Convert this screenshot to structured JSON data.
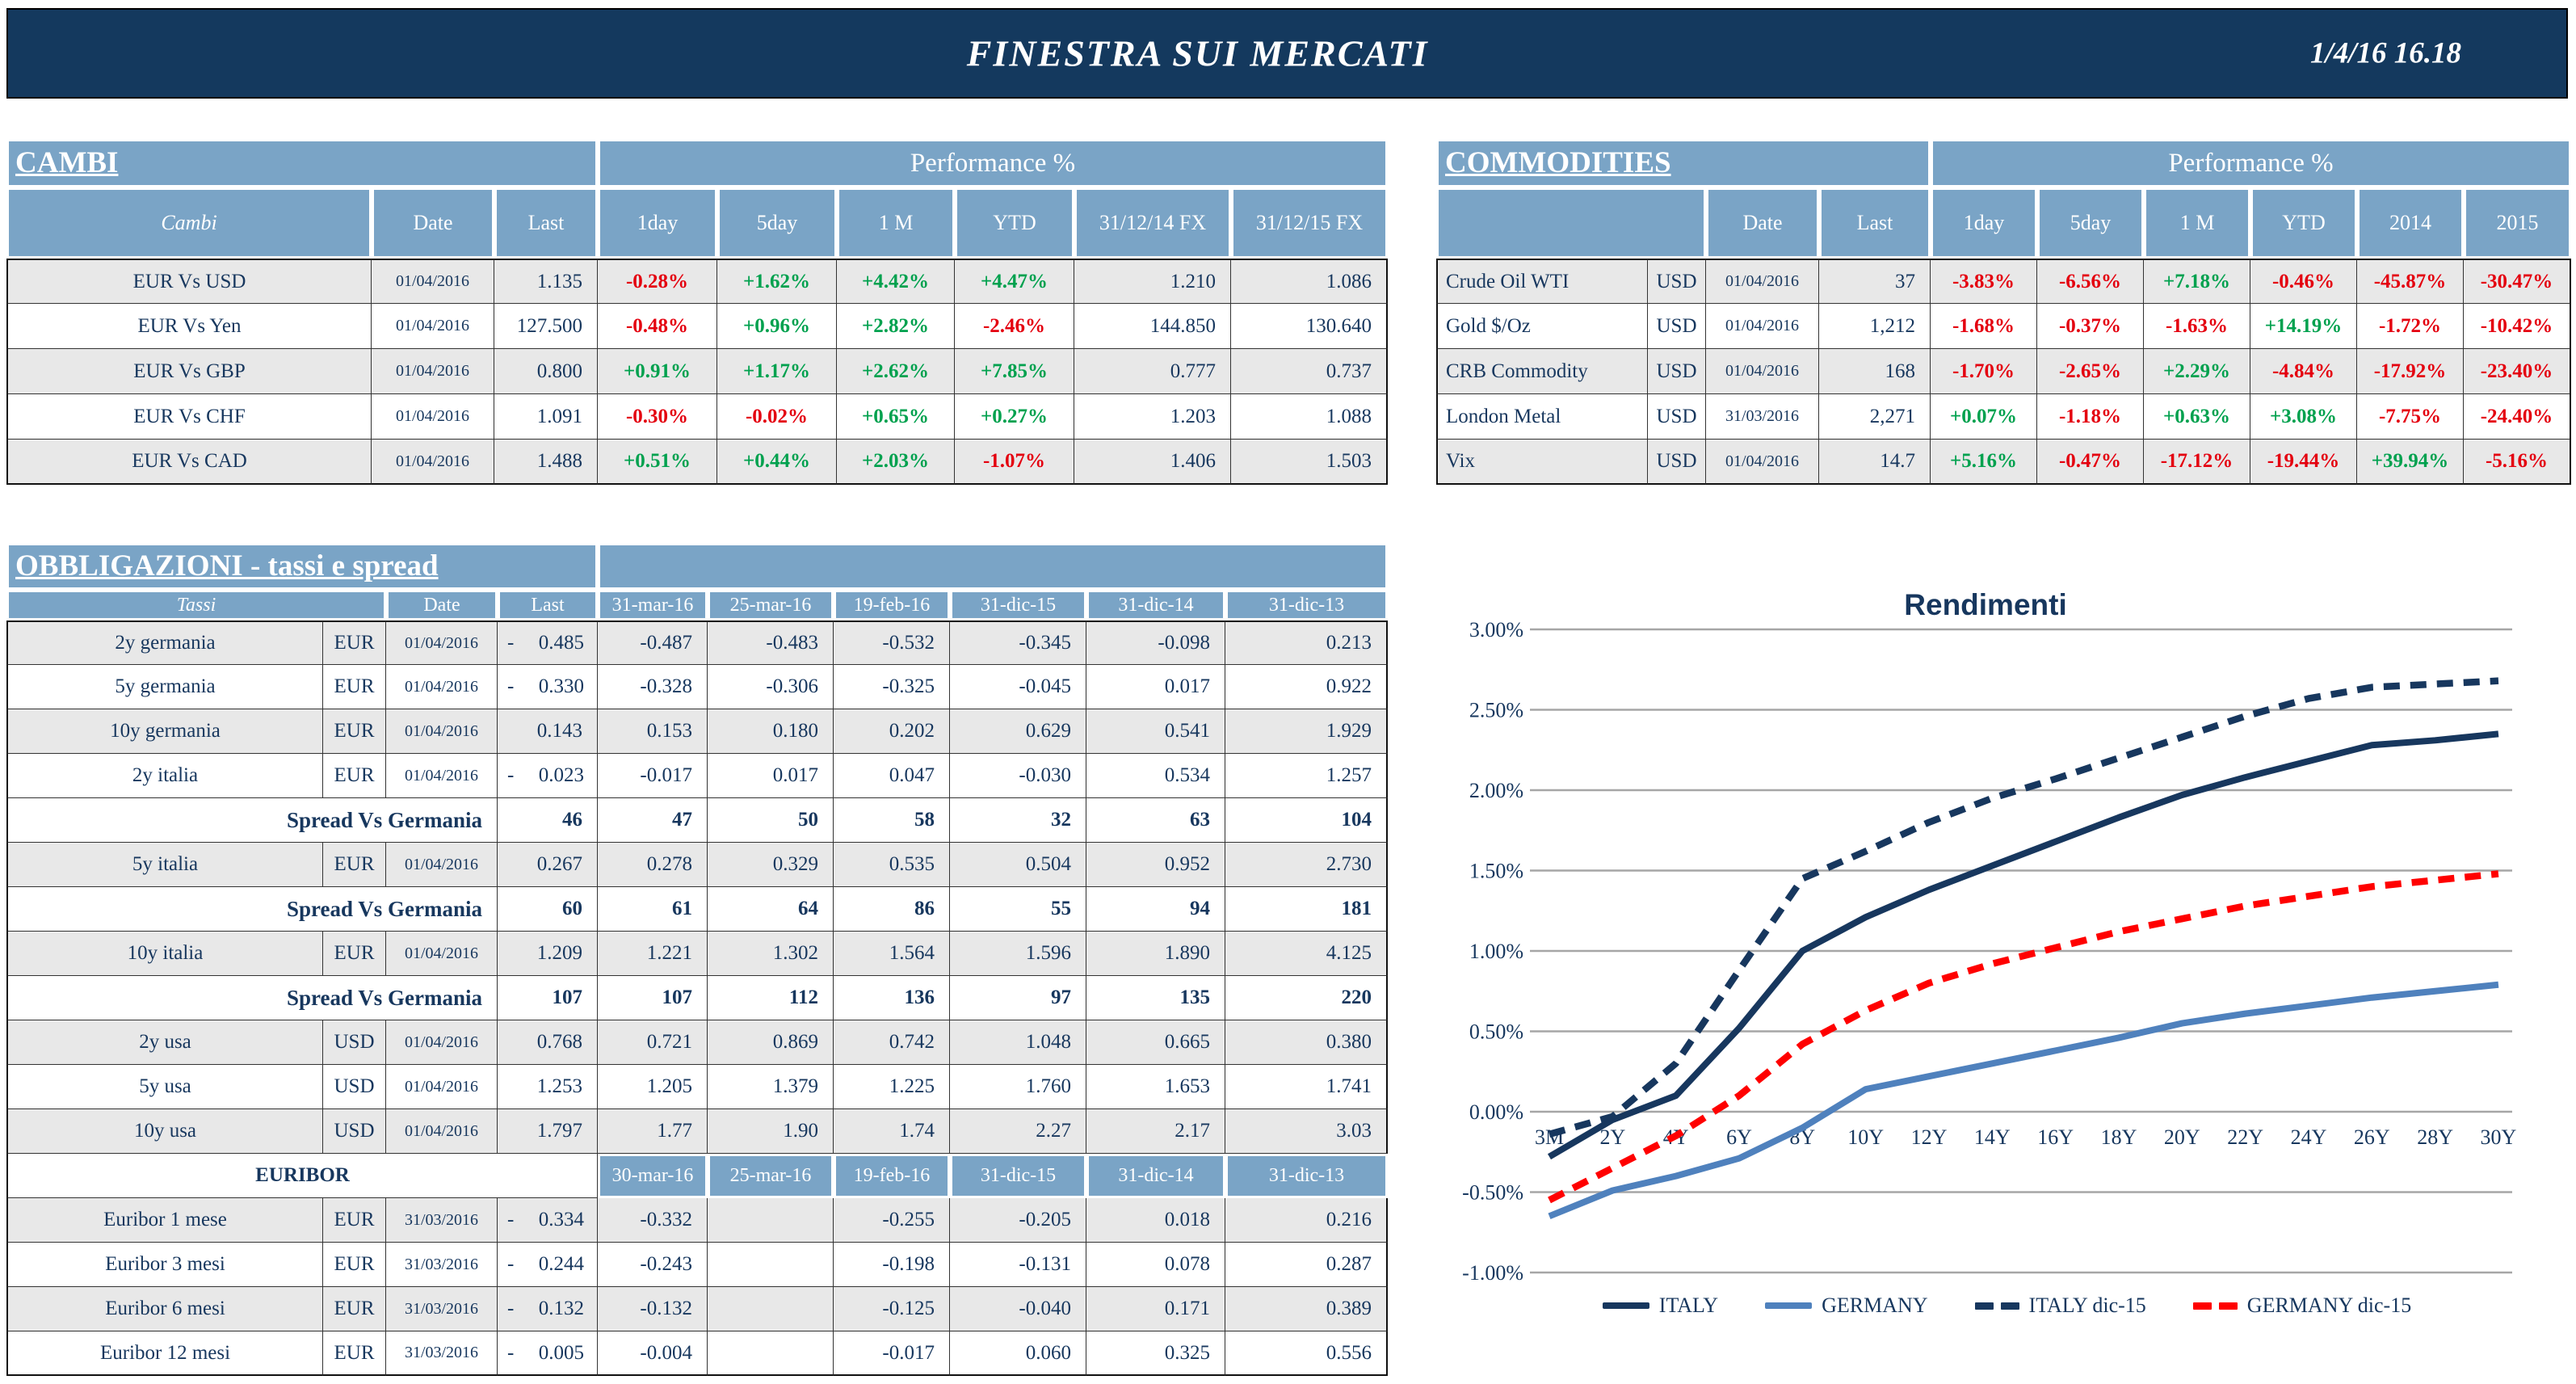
{
  "banner": {
    "title": "FINESTRA SUI MERCATI",
    "datetime": "1/4/16 16.18"
  },
  "colors": {
    "banner_navy": "#14395E",
    "table_header_blue": "#7AA4C6",
    "text_navy": "#17375E",
    "positive_green": "#00A14E",
    "negative_red": "#E4000F",
    "row_shade_gray": "#E8E8E8",
    "grid_gray": "#A6A6A6",
    "italy_line": "#17375E",
    "germany_line": "#4F81BD",
    "germany_dic15_line": "#FF0000"
  },
  "cambi": {
    "title": "CAMBI",
    "perf_header": "Performance %",
    "col_headers": [
      "Cambi",
      "Date",
      "Last",
      "1day",
      "5day",
      "1 M",
      "YTD",
      "31/12/14 FX",
      "31/12/15 FX"
    ],
    "rows": [
      {
        "name": "EUR Vs USD",
        "date": "01/04/2016",
        "last": "1.135",
        "perf": [
          "-0.28%",
          "+1.62%",
          "+4.42%",
          "+4.47%"
        ],
        "fx": [
          "1.210",
          "1.086"
        ],
        "shade": true
      },
      {
        "name": "EUR Vs Yen",
        "date": "01/04/2016",
        "last": "127.500",
        "perf": [
          "-0.48%",
          "+0.96%",
          "+2.82%",
          "-2.46%"
        ],
        "fx": [
          "144.850",
          "130.640"
        ],
        "shade": false
      },
      {
        "name": "EUR Vs GBP",
        "date": "01/04/2016",
        "last": "0.800",
        "perf": [
          "+0.91%",
          "+1.17%",
          "+2.62%",
          "+7.85%"
        ],
        "fx": [
          "0.777",
          "0.737"
        ],
        "shade": true
      },
      {
        "name": "EUR Vs CHF",
        "date": "01/04/2016",
        "last": "1.091",
        "perf": [
          "-0.30%",
          "-0.02%",
          "+0.65%",
          "+0.27%"
        ],
        "fx": [
          "1.203",
          "1.088"
        ],
        "shade": false
      },
      {
        "name": "EUR Vs CAD",
        "date": "01/04/2016",
        "last": "1.488",
        "perf": [
          "+0.51%",
          "+0.44%",
          "+2.03%",
          "-1.07%"
        ],
        "fx": [
          "1.406",
          "1.503"
        ],
        "shade": true
      }
    ]
  },
  "commodities": {
    "title": "COMMODITIES",
    "perf_header": "Performance %",
    "col_headers": [
      "",
      "Date",
      "Last",
      "1day",
      "5day",
      "1 M",
      "YTD",
      "2014",
      "2015"
    ],
    "rows": [
      {
        "name": "Crude Oil WTI",
        "ccy": "USD",
        "date": "01/04/2016",
        "last": "37",
        "perf": [
          "-3.83%",
          "-6.56%",
          "+7.18%",
          "-0.46%",
          "-45.87%",
          "-30.47%"
        ],
        "shade": true
      },
      {
        "name": "Gold $/Oz",
        "ccy": "USD",
        "date": "01/04/2016",
        "last": "1,212",
        "perf": [
          "-1.68%",
          "-0.37%",
          "-1.63%",
          "+14.19%",
          "-1.72%",
          "-10.42%"
        ],
        "shade": false
      },
      {
        "name": "CRB Commodity",
        "ccy": "USD",
        "date": "01/04/2016",
        "last": "168",
        "perf": [
          "-1.70%",
          "-2.65%",
          "+2.29%",
          "-4.84%",
          "-17.92%",
          "-23.40%"
        ],
        "shade": true
      },
      {
        "name": "London Metal",
        "ccy": "USD",
        "date": "31/03/2016",
        "last": "2,271",
        "perf": [
          "+0.07%",
          "-1.18%",
          "+0.63%",
          "+3.08%",
          "-7.75%",
          "-24.40%"
        ],
        "shade": false
      },
      {
        "name": "Vix",
        "ccy": "USD",
        "date": "01/04/2016",
        "last": "14.7",
        "perf": [
          "+5.16%",
          "-0.47%",
          "-17.12%",
          "-19.44%",
          "+39.94%",
          "-5.16%"
        ],
        "shade": true
      }
    ]
  },
  "bonds": {
    "title": "OBBLIGAZIONI - tassi e spread",
    "col_headers": [
      "Tassi",
      "Date",
      "Last",
      "31-mar-16",
      "25-mar-16",
      "19-feb-16",
      "31-dic-15",
      "31-dic-14",
      "31-dic-13"
    ],
    "euribor_col_headers": [
      "30-mar-16",
      "25-mar-16",
      "19-feb-16",
      "31-dic-15",
      "31-dic-14",
      "31-dic-13"
    ],
    "rows": [
      {
        "type": "data",
        "name": "2y germania",
        "ccy": "EUR",
        "date": "01/04/2016",
        "neg": true,
        "last": "0.485",
        "hist": [
          "-0.487",
          "-0.483",
          "-0.532",
          "-0.345",
          "-0.098",
          "0.213"
        ],
        "shade": true
      },
      {
        "type": "data",
        "name": "5y germania",
        "ccy": "EUR",
        "date": "01/04/2016",
        "neg": true,
        "last": "0.330",
        "hist": [
          "-0.328",
          "-0.306",
          "-0.325",
          "-0.045",
          "0.017",
          "0.922"
        ],
        "shade": false
      },
      {
        "type": "data",
        "name": "10y germania",
        "ccy": "EUR",
        "date": "01/04/2016",
        "neg": false,
        "last": "0.143",
        "hist": [
          "0.153",
          "0.180",
          "0.202",
          "0.629",
          "0.541",
          "1.929"
        ],
        "shade": true
      },
      {
        "type": "data",
        "name": "2y italia",
        "ccy": "EUR",
        "date": "01/04/2016",
        "neg": true,
        "last": "0.023",
        "hist": [
          "-0.017",
          "0.017",
          "0.047",
          "-0.030",
          "0.534",
          "1.257"
        ],
        "shade": false
      },
      {
        "type": "spread",
        "label": "Spread Vs Germania",
        "last": "46",
        "hist": [
          "47",
          "50",
          "58",
          "32",
          "63",
          "104"
        ],
        "shade": false
      },
      {
        "type": "data",
        "name": "5y italia",
        "ccy": "EUR",
        "date": "01/04/2016",
        "neg": false,
        "last": "0.267",
        "hist": [
          "0.278",
          "0.329",
          "0.535",
          "0.504",
          "0.952",
          "2.730"
        ],
        "shade": true
      },
      {
        "type": "spread",
        "label": "Spread Vs Germania",
        "last": "60",
        "hist": [
          "61",
          "64",
          "86",
          "55",
          "94",
          "181"
        ],
        "shade": false
      },
      {
        "type": "data",
        "name": "10y italia",
        "ccy": "EUR",
        "date": "01/04/2016",
        "neg": false,
        "last": "1.209",
        "hist": [
          "1.221",
          "1.302",
          "1.564",
          "1.596",
          "1.890",
          "4.125"
        ],
        "shade": true
      },
      {
        "type": "spread",
        "label": "Spread Vs Germania",
        "last": "107",
        "hist": [
          "107",
          "112",
          "136",
          "97",
          "135",
          "220"
        ],
        "shade": false
      },
      {
        "type": "data",
        "name": "2y usa",
        "ccy": "USD",
        "date": "01/04/2016",
        "neg": false,
        "last": "0.768",
        "hist": [
          "0.721",
          "0.869",
          "0.742",
          "1.048",
          "0.665",
          "0.380"
        ],
        "shade": true
      },
      {
        "type": "data",
        "name": "5y usa",
        "ccy": "USD",
        "date": "01/04/2016",
        "neg": false,
        "last": "1.253",
        "hist": [
          "1.205",
          "1.379",
          "1.225",
          "1.760",
          "1.653",
          "1.741"
        ],
        "shade": false
      },
      {
        "type": "data",
        "name": "10y usa",
        "ccy": "USD",
        "date": "01/04/2016",
        "neg": false,
        "last": "1.797",
        "hist": [
          "1.77",
          "1.90",
          "1.74",
          "2.27",
          "2.17",
          "3.03"
        ],
        "shade": true
      },
      {
        "type": "subheader",
        "label": "EURIBOR",
        "shade": false
      },
      {
        "type": "data",
        "name": "Euribor 1 mese",
        "ccy": "EUR",
        "date": "31/03/2016",
        "neg": true,
        "last": "0.334",
        "hist": [
          "-0.332",
          "",
          "-0.255",
          "-0.205",
          "0.018",
          "0.216"
        ],
        "shade": true
      },
      {
        "type": "data",
        "name": "Euribor 3 mesi",
        "ccy": "EUR",
        "date": "31/03/2016",
        "neg": true,
        "last": "0.244",
        "hist": [
          "-0.243",
          "",
          "-0.198",
          "-0.131",
          "0.078",
          "0.287"
        ],
        "shade": false
      },
      {
        "type": "data",
        "name": "Euribor 6 mesi",
        "ccy": "EUR",
        "date": "31/03/2016",
        "neg": true,
        "last": "0.132",
        "hist": [
          "-0.132",
          "",
          "-0.125",
          "-0.040",
          "0.171",
          "0.389"
        ],
        "shade": true
      },
      {
        "type": "data",
        "name": "Euribor 12 mesi",
        "ccy": "EUR",
        "date": "31/03/2016",
        "neg": true,
        "last": "0.005",
        "hist": [
          "-0.004",
          "",
          "-0.017",
          "0.060",
          "0.325",
          "0.556"
        ],
        "shade": false
      }
    ]
  },
  "chart_data": {
    "type": "line",
    "title": "Rendimenti",
    "categories": [
      "3M",
      "2Y",
      "4Y",
      "6Y",
      "8Y",
      "10Y",
      "12Y",
      "14Y",
      "16Y",
      "18Y",
      "20Y",
      "22Y",
      "24Y",
      "26Y",
      "28Y",
      "30Y"
    ],
    "ylim": [
      -1.0,
      3.0
    ],
    "ytick_values": [
      3.0,
      2.5,
      2.0,
      1.5,
      1.0,
      0.5,
      0.0,
      -0.5,
      -1.0
    ],
    "ytick_labels": [
      "3.00%",
      "2.50%",
      "2.00%",
      "1.50%",
      "1.00%",
      "0.50%",
      "0.00%",
      "-0.50%",
      "-1.00%"
    ],
    "grid": "horizontal",
    "legend_position": "bottom",
    "series": [
      {
        "name": "ITALY",
        "style": "solid",
        "color": "#17375E",
        "values": [
          -0.28,
          -0.05,
          0.1,
          0.52,
          1.0,
          1.21,
          1.38,
          1.53,
          1.68,
          1.83,
          1.97,
          2.08,
          2.18,
          2.28,
          2.31,
          2.35
        ]
      },
      {
        "name": "GERMANY",
        "style": "solid",
        "color": "#4F81BD",
        "values": [
          -0.65,
          -0.49,
          -0.4,
          -0.29,
          -0.1,
          0.14,
          0.22,
          0.3,
          0.38,
          0.46,
          0.55,
          0.61,
          0.66,
          0.71,
          0.75,
          0.79
        ]
      },
      {
        "name": "ITALY dic-15",
        "style": "dashed",
        "color": "#17375E",
        "values": [
          -0.14,
          -0.03,
          0.3,
          0.88,
          1.45,
          1.62,
          1.8,
          1.95,
          2.07,
          2.2,
          2.33,
          2.46,
          2.57,
          2.64,
          2.66,
          2.68
        ]
      },
      {
        "name": "GERMANY dic-15",
        "style": "dashed",
        "color": "#FF0000",
        "values": [
          -0.55,
          -0.35,
          -0.15,
          0.1,
          0.42,
          0.63,
          0.8,
          0.92,
          1.02,
          1.12,
          1.2,
          1.28,
          1.34,
          1.4,
          1.44,
          1.48
        ]
      }
    ]
  }
}
